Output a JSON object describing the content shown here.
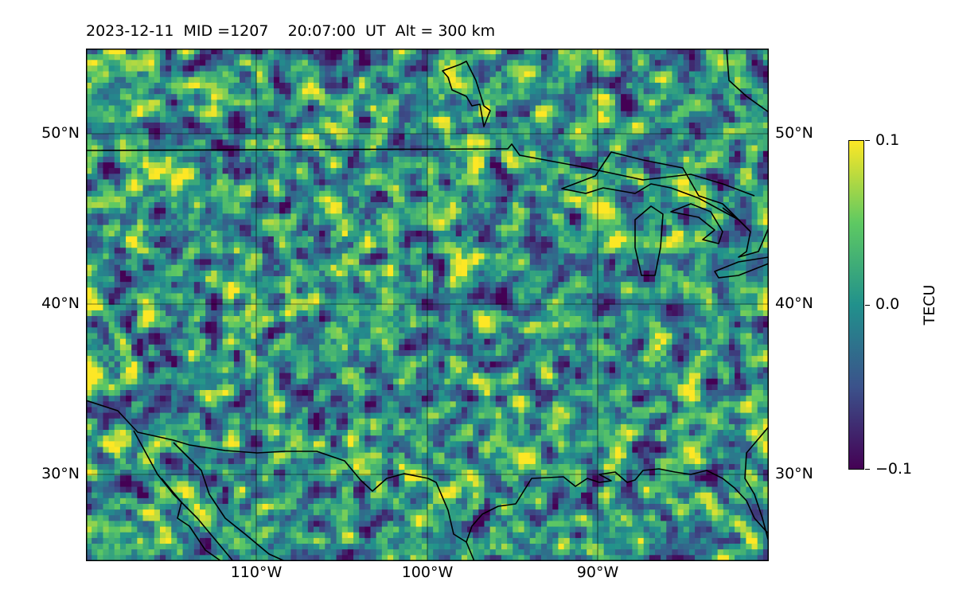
{
  "title": "2023-12-11  MID =1207    20:07:00  UT  Alt = 300 km",
  "map": {
    "lon_range": [
      -120,
      -80
    ],
    "lat_range": [
      25,
      55
    ],
    "grid_lons": [
      -110,
      -100,
      -90
    ],
    "grid_lats": [
      30,
      40,
      50
    ],
    "lat_tick_labels": [
      "50°N",
      "40°N",
      "30°N"
    ],
    "lon_tick_labels": [
      "110°W",
      "100°W",
      "90°W"
    ],
    "field": "random TEC anomaly pattern (-0.1 to 0.1 TECU)"
  },
  "colorbar": {
    "label": "TECU",
    "ticks": [
      "0.1",
      "0.0",
      "−0.1"
    ],
    "range": [
      -0.1,
      0.1
    ],
    "colormap": "viridis",
    "colors": [
      "#440154",
      "#3b528b",
      "#21918c",
      "#5ec962",
      "#fde725"
    ]
  }
}
